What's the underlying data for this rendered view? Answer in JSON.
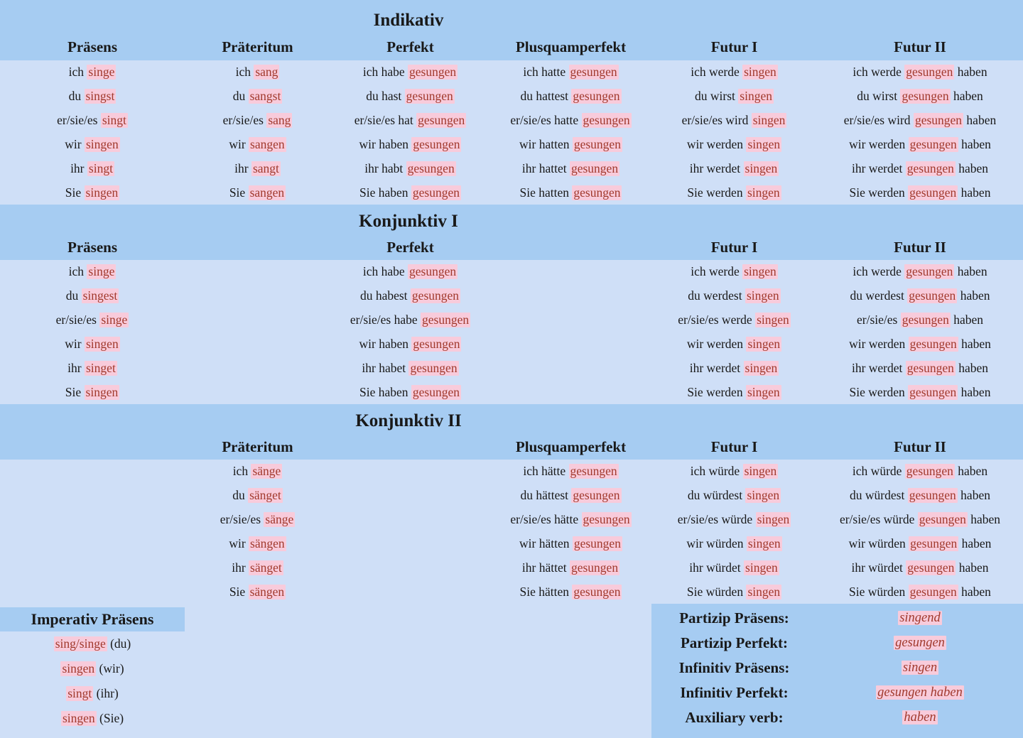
{
  "colors": {
    "band_background": "#a6ccf2",
    "body_background": "#cfdff7",
    "text_black": "#191919",
    "verb_red": "#a13a2d",
    "highlight_pink": "#f8cbdb"
  },
  "sections": [
    {
      "title": "Indikativ",
      "columns": [
        {
          "col": 1,
          "header": "Präsens",
          "rows": [
            "ich |singe|",
            "du |singst|",
            "er/sie/es |singt|",
            "wir |singen|",
            "ihr |singt|",
            "Sie |singen|"
          ]
        },
        {
          "col": 2,
          "header": "Präteritum",
          "rows": [
            "ich |sang|",
            "du |sangst|",
            "er/sie/es |sang|",
            "wir |sangen|",
            "ihr |sangt|",
            "Sie |sangen|"
          ]
        },
        {
          "col": 3,
          "header": "Perfekt",
          "rows": [
            "ich habe |gesungen|",
            "du hast |gesungen|",
            "er/sie/es hat |gesungen|",
            "wir haben |gesungen|",
            "ihr habt |gesungen|",
            "Sie haben |gesungen|"
          ]
        },
        {
          "col": 4,
          "header": "Plusquamperfekt",
          "rows": [
            "ich hatte |gesungen|",
            "du hattest |gesungen|",
            "er/sie/es hatte |gesungen|",
            "wir hatten |gesungen|",
            "ihr hattet |gesungen|",
            "Sie hatten |gesungen|"
          ]
        },
        {
          "col": 5,
          "header": "Futur I",
          "rows": [
            "ich werde |singen|",
            "du wirst |singen|",
            "er/sie/es wird |singen|",
            "wir werden |singen|",
            "ihr werdet |singen|",
            "Sie werden |singen|"
          ]
        },
        {
          "col": 6,
          "header": "Futur II",
          "rows": [
            "ich werde |gesungen| haben",
            "du wirst |gesungen| haben",
            "er/sie/es wird |gesungen| haben",
            "wir werden |gesungen| haben",
            "ihr werdet |gesungen| haben",
            "Sie werden |gesungen| haben"
          ]
        }
      ]
    },
    {
      "title": "Konjunktiv I",
      "columns": [
        {
          "col": 1,
          "header": "Präsens",
          "rows": [
            "ich |singe|",
            "du |singest|",
            "er/sie/es |singe|",
            "wir |singen|",
            "ihr |singet|",
            "Sie |singen|"
          ]
        },
        {
          "col": 3,
          "header": "Perfekt",
          "rows": [
            "ich habe |gesungen|",
            "du habest |gesungen|",
            "er/sie/es habe |gesungen|",
            "wir haben |gesungen|",
            "ihr habet |gesungen|",
            "Sie haben |gesungen|"
          ]
        },
        {
          "col": 5,
          "header": "Futur I",
          "rows": [
            "ich werde |singen|",
            "du werdest |singen|",
            "er/sie/es werde |singen|",
            "wir werden |singen|",
            "ihr werdet |singen|",
            "Sie werden |singen|"
          ]
        },
        {
          "col": 6,
          "header": "Futur II",
          "rows": [
            "ich werde |gesungen| haben",
            "du werdest |gesungen| haben",
            "er/sie/es |gesungen| haben",
            "wir werden |gesungen| haben",
            "ihr werdet |gesungen| haben",
            "Sie werden |gesungen| haben"
          ]
        }
      ]
    },
    {
      "title": "Konjunktiv II",
      "columns": [
        {
          "col": 2,
          "header": "Präteritum",
          "rows": [
            "ich |sänge|",
            "du |sänget|",
            "er/sie/es |sänge|",
            "wir |sängen|",
            "ihr |sänget|",
            "Sie |sängen|"
          ]
        },
        {
          "col": 4,
          "header": "Plusquamperfekt",
          "rows": [
            "ich hätte |gesungen|",
            "du hättest |gesungen|",
            "er/sie/es hätte |gesungen|",
            "wir hätten |gesungen|",
            "ihr hättet |gesungen|",
            "Sie hätten |gesungen|"
          ]
        },
        {
          "col": 5,
          "header": "Futur I",
          "rows": [
            "ich würde |singen|",
            "du würdest |singen|",
            "er/sie/es würde |singen|",
            "wir würden |singen|",
            "ihr würdet |singen|",
            "Sie würden |singen|"
          ]
        },
        {
          "col": 6,
          "header": "Futur II",
          "rows": [
            "ich würde |gesungen| haben",
            "du würdest |gesungen| haben",
            "er/sie/es würde |gesungen| haben",
            "wir würden |gesungen| haben",
            "ihr würdet |gesungen| haben",
            "Sie würden |gesungen| haben"
          ]
        }
      ]
    }
  ],
  "imperativ": {
    "header": "Imperativ Präsens",
    "rows": [
      "|sing/singe| (du)",
      "|singen| (wir)",
      "|singt| (ihr)",
      "|singen| (Sie)"
    ]
  },
  "summary": {
    "rows": [
      {
        "label": "Partizip Präsens:",
        "value": "singend"
      },
      {
        "label": "Partizip Perfekt:",
        "value": "gesungen"
      },
      {
        "label": "Infinitiv Präsens:",
        "value": "singen"
      },
      {
        "label": "Infinitiv Perfekt:",
        "value": "gesungen haben"
      },
      {
        "label": "Auxiliary verb:",
        "value": "haben"
      }
    ]
  }
}
